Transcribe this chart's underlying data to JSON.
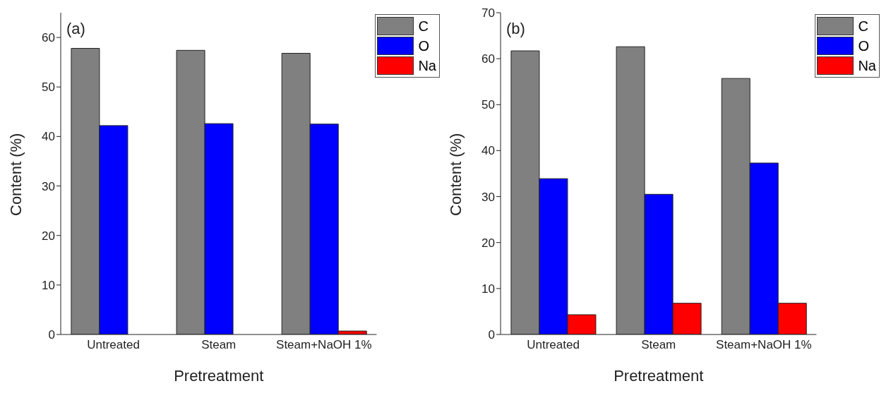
{
  "chart_data": [
    {
      "type": "bar",
      "annotations": [
        "(a)"
      ],
      "xlabel": "Pretreatment",
      "ylabel": "Content (%)",
      "categories": [
        "Untreated",
        "Steam",
        "Steam+NaOH 1%"
      ],
      "series": [
        {
          "name": "C",
          "color": "#808080",
          "values": [
            57.8,
            57.4,
            56.8
          ]
        },
        {
          "name": "O",
          "color": "#0000ff",
          "values": [
            42.2,
            42.6,
            42.5
          ]
        },
        {
          "name": "Na",
          "color": "#ff0000",
          "values": [
            0,
            0,
            0.7
          ]
        }
      ],
      "ylim": [
        0,
        65
      ],
      "yticks": [
        0,
        10,
        20,
        30,
        40,
        50,
        60
      ],
      "grid": false,
      "legend": "top right"
    },
    {
      "type": "bar",
      "annotations": [
        "(b)"
      ],
      "xlabel": "Pretreatment",
      "ylabel": "Content (%)",
      "categories": [
        "Untreated",
        "Steam",
        "Steam+NaOH 1%"
      ],
      "series": [
        {
          "name": "C",
          "color": "#808080",
          "values": [
            61.7,
            62.6,
            55.7
          ]
        },
        {
          "name": "O",
          "color": "#0000ff",
          "values": [
            33.9,
            30.5,
            37.3
          ]
        },
        {
          "name": "Na",
          "color": "#ff0000",
          "values": [
            4.3,
            6.8,
            6.8
          ]
        }
      ],
      "ylim": [
        0,
        70
      ],
      "yticks": [
        0,
        10,
        20,
        30,
        40,
        50,
        60,
        70
      ],
      "grid": false,
      "legend": "top right"
    }
  ]
}
